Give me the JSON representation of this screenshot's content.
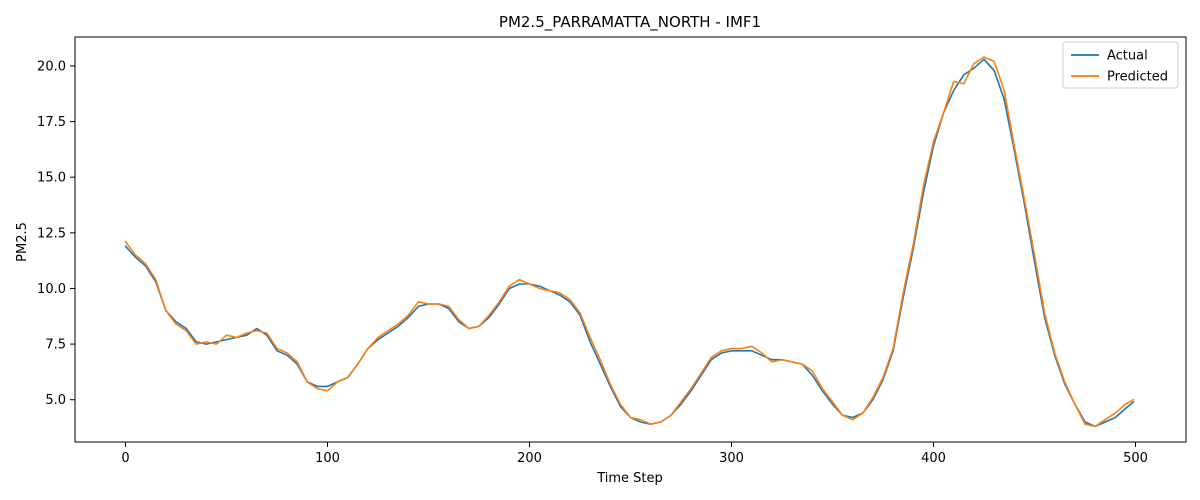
{
  "chart_data": {
    "type": "line",
    "title": "PM2.5_PARRAMATTA_NORTH - IMF1",
    "xlabel": "Time Step",
    "ylabel": "PM2.5",
    "xlim": [
      -25,
      525
    ],
    "ylim": [
      3.1,
      21.3
    ],
    "xticks": [
      0,
      100,
      200,
      300,
      400,
      500
    ],
    "yticks": [
      5.0,
      7.5,
      10.0,
      12.5,
      15.0,
      17.5,
      20.0
    ],
    "xtick_labels": [
      "0",
      "100",
      "200",
      "300",
      "400",
      "500"
    ],
    "ytick_labels": [
      "5.0",
      "7.5",
      "10.0",
      "12.5",
      "15.0",
      "17.5",
      "20.0"
    ],
    "grid": false,
    "legend_position": "top-right",
    "series": [
      {
        "name": "Actual",
        "color": "#1f77b4",
        "x": [
          0,
          5,
          10,
          15,
          20,
          25,
          30,
          35,
          40,
          45,
          50,
          55,
          60,
          65,
          70,
          75,
          80,
          85,
          90,
          95,
          100,
          105,
          110,
          115,
          120,
          125,
          130,
          135,
          140,
          145,
          150,
          155,
          160,
          165,
          170,
          175,
          180,
          185,
          190,
          195,
          200,
          205,
          210,
          215,
          220,
          225,
          230,
          235,
          240,
          245,
          250,
          255,
          260,
          265,
          270,
          275,
          280,
          285,
          290,
          295,
          300,
          305,
          310,
          315,
          320,
          325,
          330,
          335,
          340,
          345,
          350,
          355,
          360,
          365,
          370,
          375,
          380,
          385,
          390,
          395,
          400,
          405,
          410,
          415,
          420,
          425,
          430,
          435,
          440,
          445,
          450,
          455,
          460,
          465,
          470,
          475,
          480,
          485,
          490,
          495,
          499
        ],
        "y": [
          11.9,
          11.4,
          11.0,
          10.3,
          9.0,
          8.5,
          8.2,
          7.6,
          7.5,
          7.6,
          7.7,
          7.8,
          7.9,
          8.2,
          7.9,
          7.2,
          7.0,
          6.6,
          5.8,
          5.6,
          5.6,
          5.8,
          6.0,
          6.6,
          7.3,
          7.7,
          8.0,
          8.3,
          8.7,
          9.2,
          9.3,
          9.3,
          9.1,
          8.5,
          8.2,
          8.3,
          8.7,
          9.3,
          10.0,
          10.2,
          10.2,
          10.1,
          9.9,
          9.7,
          9.4,
          8.8,
          7.6,
          6.6,
          5.6,
          4.7,
          4.2,
          4.0,
          3.9,
          4.0,
          4.3,
          4.8,
          5.4,
          6.1,
          6.8,
          7.1,
          7.2,
          7.2,
          7.2,
          7.0,
          6.8,
          6.8,
          6.7,
          6.6,
          6.1,
          5.4,
          4.8,
          4.3,
          4.2,
          4.4,
          5.0,
          5.9,
          7.2,
          9.6,
          11.8,
          14.3,
          16.4,
          17.9,
          18.9,
          19.6,
          19.9,
          20.3,
          19.8,
          18.5,
          16.2,
          13.8,
          11.2,
          8.7,
          7.0,
          5.7,
          4.8,
          4.0,
          3.8,
          4.0,
          4.2,
          4.6,
          4.9
        ]
      },
      {
        "name": "Predicted",
        "color": "#ff7f0e",
        "x": [
          0,
          5,
          10,
          15,
          20,
          25,
          30,
          35,
          40,
          45,
          50,
          55,
          60,
          65,
          70,
          75,
          80,
          85,
          90,
          95,
          100,
          105,
          110,
          115,
          120,
          125,
          130,
          135,
          140,
          145,
          150,
          155,
          160,
          165,
          170,
          175,
          180,
          185,
          190,
          195,
          200,
          205,
          210,
          215,
          220,
          225,
          230,
          235,
          240,
          245,
          250,
          255,
          260,
          265,
          270,
          275,
          280,
          285,
          290,
          295,
          300,
          305,
          310,
          315,
          320,
          325,
          330,
          335,
          340,
          345,
          350,
          355,
          360,
          365,
          370,
          375,
          380,
          385,
          390,
          395,
          400,
          405,
          410,
          415,
          420,
          425,
          430,
          435,
          440,
          445,
          450,
          455,
          460,
          465,
          470,
          475,
          480,
          485,
          490,
          495,
          499
        ],
        "y": [
          12.1,
          11.5,
          11.1,
          10.4,
          9.0,
          8.4,
          8.1,
          7.5,
          7.6,
          7.5,
          7.9,
          7.8,
          8.0,
          8.1,
          8.0,
          7.3,
          7.1,
          6.7,
          5.8,
          5.5,
          5.4,
          5.8,
          6.0,
          6.6,
          7.3,
          7.8,
          8.1,
          8.4,
          8.8,
          9.4,
          9.3,
          9.3,
          9.2,
          8.6,
          8.2,
          8.3,
          8.8,
          9.4,
          10.1,
          10.4,
          10.2,
          10.0,
          9.9,
          9.8,
          9.5,
          8.9,
          7.8,
          6.8,
          5.7,
          4.8,
          4.2,
          4.1,
          3.9,
          4.0,
          4.3,
          4.9,
          5.5,
          6.2,
          6.9,
          7.2,
          7.3,
          7.3,
          7.4,
          7.1,
          6.7,
          6.8,
          6.7,
          6.6,
          6.3,
          5.5,
          4.9,
          4.3,
          4.1,
          4.4,
          5.1,
          6.0,
          7.3,
          9.8,
          12.0,
          14.6,
          16.6,
          17.9,
          19.3,
          19.2,
          20.1,
          20.4,
          20.2,
          18.9,
          16.4,
          14.0,
          11.5,
          8.9,
          7.1,
          5.8,
          4.8,
          3.9,
          3.8,
          4.1,
          4.4,
          4.8,
          5.0
        ]
      }
    ]
  }
}
